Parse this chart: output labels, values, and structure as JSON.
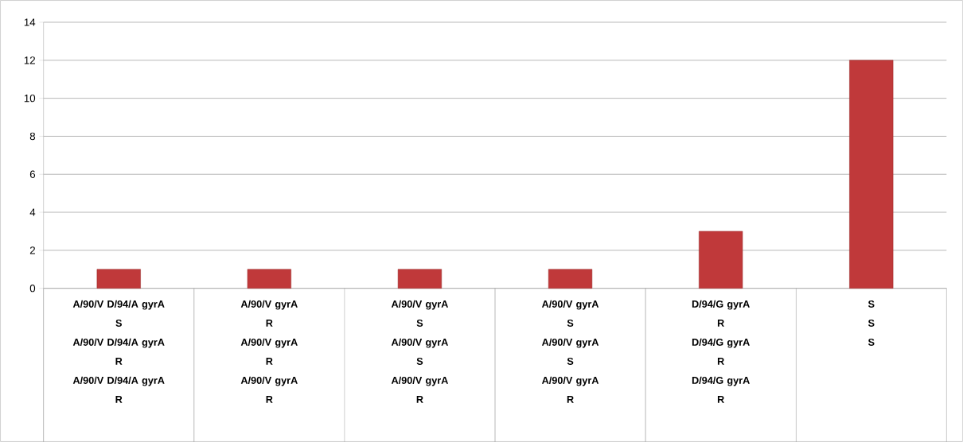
{
  "chart_data": {
    "type": "bar",
    "categories": [
      "A/90/V D/94/A gyrA\nS\nA/90/V D/94/A gyrA\nR\nA/90/V D/94/A gyrA\nR",
      "A/90/V gyrA\nR\nA/90/V gyrA\nR\nA/90/V gyrA\nR",
      "A/90/V gyrA\nS\nA/90/V gyrA\nS\nA/90/V gyrA\nR",
      "A/90/V gyrA\nS\nA/90/V gyrA\nS\nA/90/V gyrA\nR",
      "D/94/G gyrA\nR\nD/94/G gyrA\nR\nD/94/G gyrA\nR",
      "S\nS\nS"
    ],
    "values": [
      1,
      1,
      1,
      1,
      3,
      12
    ],
    "color": "#c0393a",
    "ylim": [
      0,
      14
    ],
    "yticks": [
      0,
      2,
      4,
      6,
      8,
      10,
      12,
      14
    ],
    "grid": "y"
  }
}
